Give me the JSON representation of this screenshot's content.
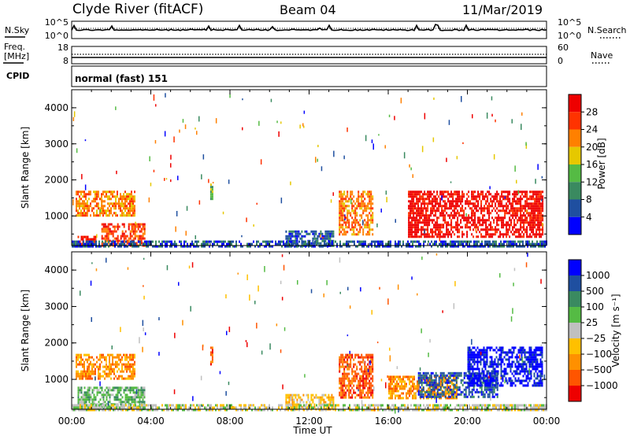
{
  "header": {
    "station": "Clyde River (fitACF)",
    "beam": "Beam 04",
    "date": "11/Mar/2019"
  },
  "strip_labels": {
    "nsky": "N.Sky",
    "freq_line1": "Freq.",
    "freq_line2": "[MHz]",
    "cpid": "CPID",
    "nsearch": "N.Search",
    "nave": "Nave",
    "cpid_text": "normal (fast) 151"
  },
  "strip_ticks": {
    "noise_left_top": "10^5",
    "noise_left_bottom": "10^0",
    "noise_right_top": "10^5",
    "noise_right_bottom": "10^0",
    "freq_top": "18",
    "freq_bottom": "8",
    "nave_top": "60",
    "nave_bottom": "0"
  },
  "colors": {
    "power": [
      "#0000ff",
      "#1f4fa0",
      "#3a8a60",
      "#55bb44",
      "#e6c800",
      "#ff8000",
      "#ff3300",
      "#ee0000"
    ],
    "velocity": [
      "#ee0000",
      "#ff5500",
      "#ff9000",
      "#ffc000",
      "#c0c0c0",
      "#55bb44",
      "#3a8a60",
      "#1f4fa0",
      "#0000ff"
    ],
    "ground_scatter": "#b0b0b0"
  },
  "chart_data": [
    {
      "type": "heatmap",
      "title": "Power",
      "xlabel": "",
      "ylabel": "Slant Range [km]",
      "colorbar_label": "Power [dB]",
      "colorbar_ticks": [
        "28",
        "24",
        "20",
        "16",
        "12",
        "8",
        "4"
      ],
      "xlim": [
        "00:00",
        "24:00"
      ],
      "ylim": [
        180,
        4500
      ],
      "x_ticks": [
        "00:00",
        "04:00",
        "08:00",
        "12:00",
        "16:00",
        "20:00",
        "00:00"
      ],
      "y_ticks": [
        "1000",
        "2000",
        "3000",
        "4000"
      ],
      "y_tick_values": [
        1000,
        2000,
        3000,
        4000
      ],
      "scatter_regions": [
        {
          "t0": 0.2,
          "t1": 3.2,
          "r0": 1000,
          "r1": 1700,
          "level": 5
        },
        {
          "t0": 0.3,
          "t1": 1.2,
          "r0": 200,
          "r1": 450,
          "level": 7
        },
        {
          "t0": 1.5,
          "t1": 3.7,
          "r0": 200,
          "r1": 800,
          "level": 6
        },
        {
          "t0": 7.0,
          "t1": 7.1,
          "r0": 1400,
          "r1": 1900,
          "level": 3
        },
        {
          "t0": 10.8,
          "t1": 13.2,
          "r0": 200,
          "r1": 600,
          "level": 1
        },
        {
          "t0": 13.5,
          "t1": 15.2,
          "r0": 500,
          "r1": 1700,
          "level": 5
        },
        {
          "t0": 17.0,
          "t1": 23.8,
          "r0": 400,
          "r1": 1700,
          "level": 7
        },
        {
          "t0": 0.0,
          "t1": 24.0,
          "r0": 180,
          "r1": 320,
          "level": 1
        }
      ]
    },
    {
      "type": "heatmap",
      "title": "Velocity",
      "xlabel": "Time UT",
      "ylabel": "Slant Range [km]",
      "colorbar_label": "Velocity [m s⁻¹]",
      "colorbar_ticks": [
        "1000",
        "500",
        "100",
        "25",
        "−25",
        "−100",
        "−500",
        "−1000"
      ],
      "xlim": [
        "00:00",
        "24:00"
      ],
      "ylim": [
        180,
        4500
      ],
      "x_ticks": [
        "00:00",
        "04:00",
        "08:00",
        "12:00",
        "16:00",
        "20:00",
        "00:00"
      ],
      "y_ticks": [
        "1000",
        "2000",
        "3000",
        "4000"
      ],
      "y_tick_values": [
        1000,
        2000,
        3000,
        4000
      ],
      "scatter_regions": [
        {
          "t0": 0.2,
          "t1": 3.2,
          "r0": 1000,
          "r1": 1700,
          "level": 2
        },
        {
          "t0": 0.3,
          "t1": 3.7,
          "r0": 200,
          "r1": 800,
          "level": 5
        },
        {
          "t0": 7.0,
          "t1": 7.1,
          "r0": 1400,
          "r1": 1900,
          "level": 1
        },
        {
          "t0": 10.8,
          "t1": 13.2,
          "r0": 200,
          "r1": 600,
          "level": 3
        },
        {
          "t0": 13.5,
          "t1": 15.2,
          "r0": 500,
          "r1": 1700,
          "level": 1
        },
        {
          "t0": 16.0,
          "t1": 19.5,
          "r0": 500,
          "r1": 1100,
          "level": 2
        },
        {
          "t0": 17.5,
          "t1": 21.5,
          "r0": 500,
          "r1": 1200,
          "level": 7
        },
        {
          "t0": 20.0,
          "t1": 23.8,
          "r0": 800,
          "r1": 1900,
          "level": 8
        },
        {
          "t0": 0.0,
          "t1": 24.0,
          "r0": 180,
          "r1": 320,
          "level": 4
        }
      ]
    }
  ]
}
